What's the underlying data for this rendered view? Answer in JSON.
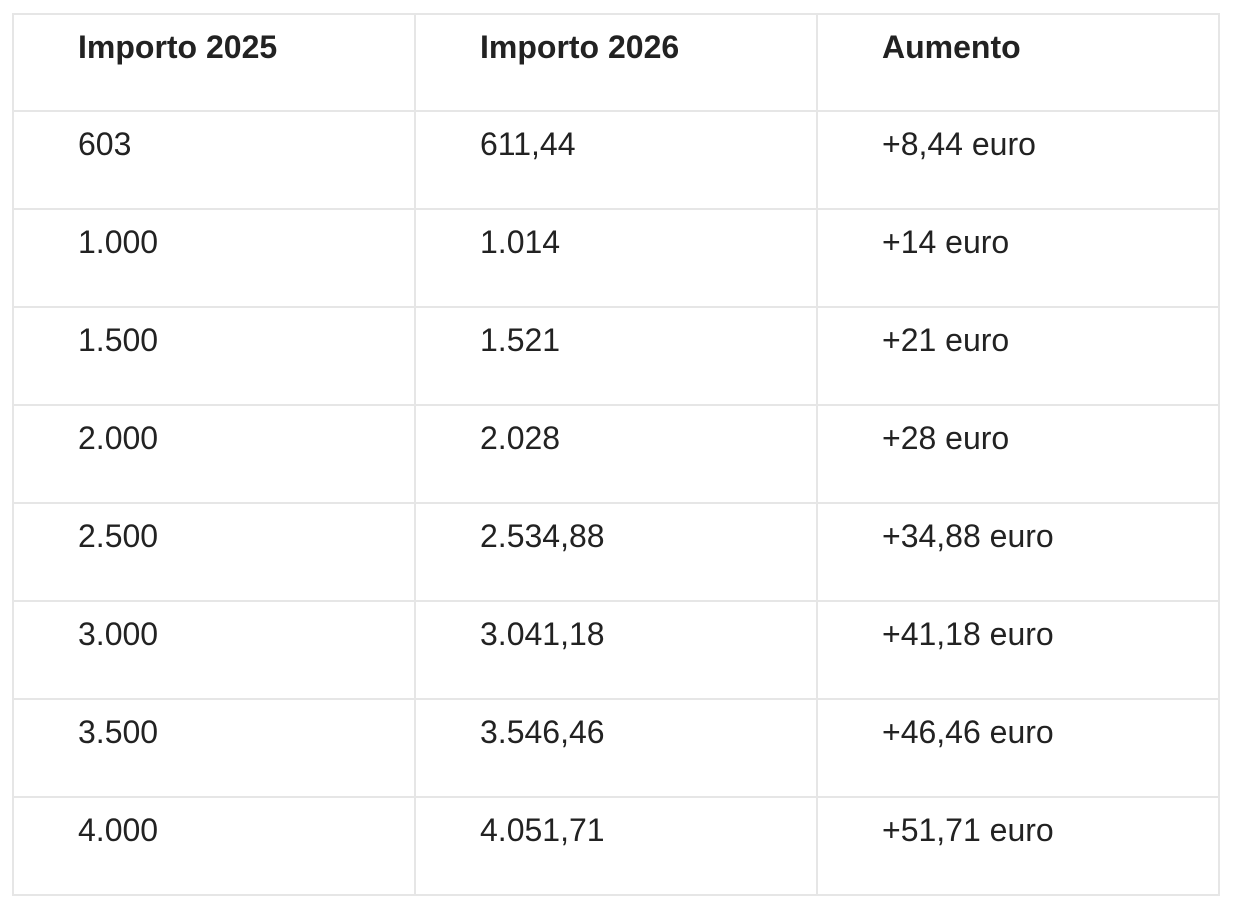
{
  "table": {
    "header": [
      "Importo 2025",
      "Importo 2026",
      "Aumento"
    ],
    "rows": [
      [
        "603",
        "611,44",
        "+8,44 euro"
      ],
      [
        "1.000",
        "1.014",
        "+14 euro"
      ],
      [
        "1.500",
        "1.521",
        "+21 euro"
      ],
      [
        "2.000",
        "2.028",
        "+28 euro"
      ],
      [
        "2.500",
        "2.534,88",
        "+34,88 euro"
      ],
      [
        "3.000",
        "3.041,18",
        "+41,18 euro"
      ],
      [
        "3.500",
        "3.546,46",
        "+46,46 euro"
      ],
      [
        "4.000",
        "4.051,71",
        "+51,71 euro"
      ]
    ]
  }
}
